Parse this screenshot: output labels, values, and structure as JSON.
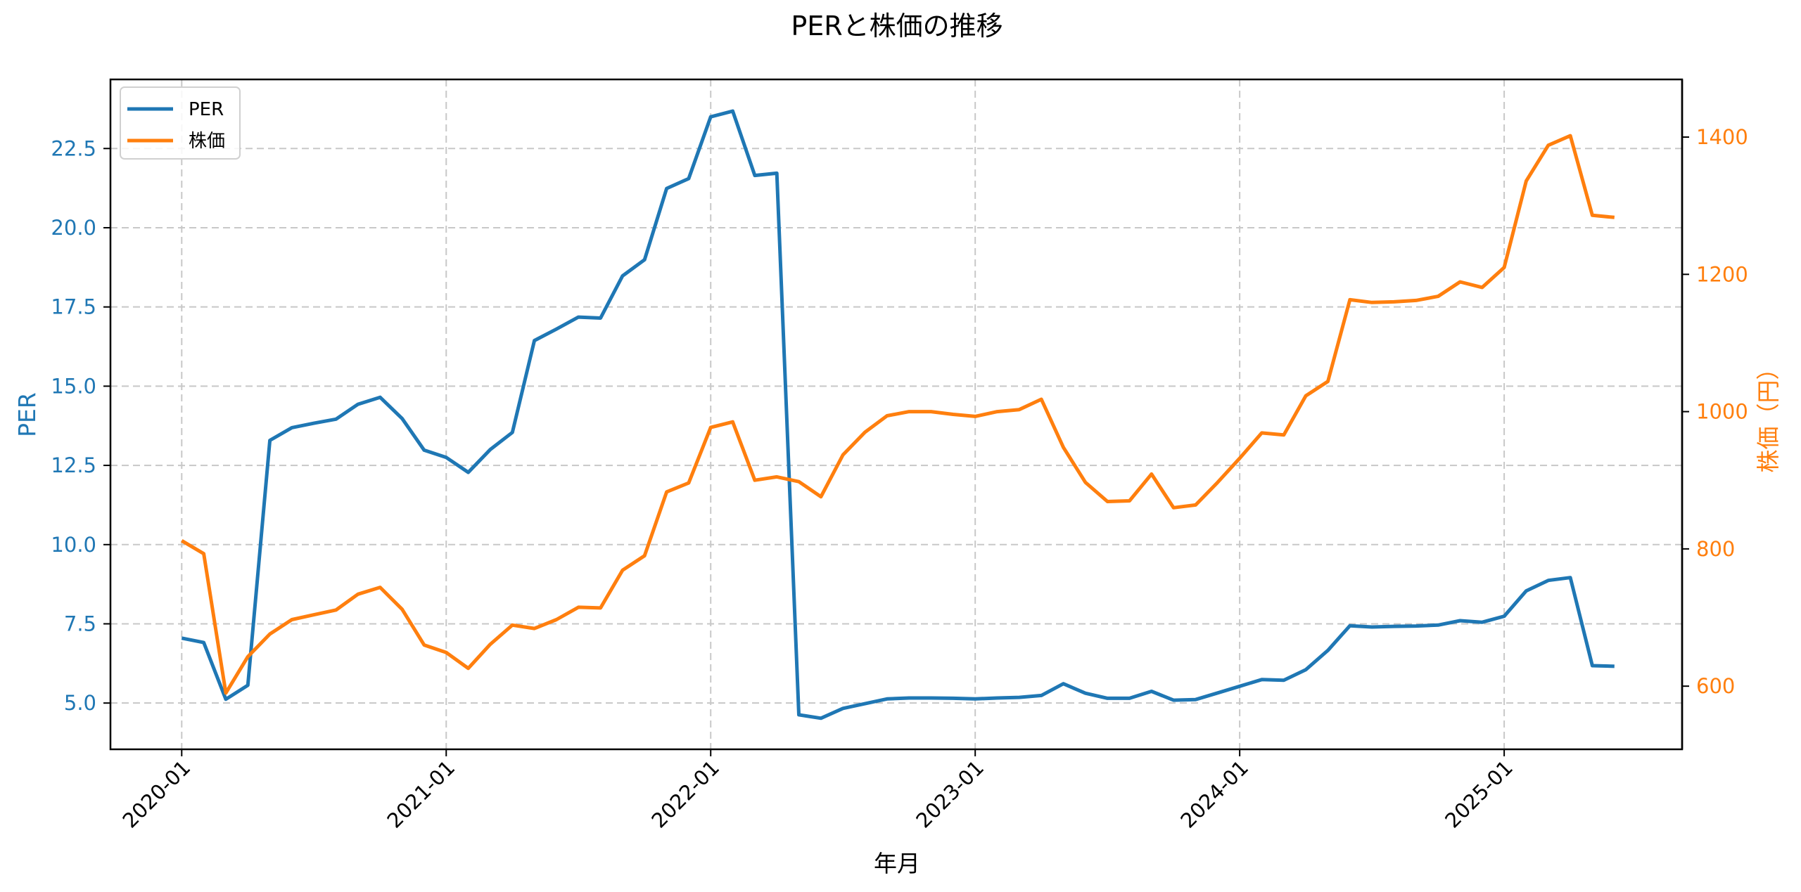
{
  "chart_data": {
    "type": "line",
    "title": "PERと株価の推移",
    "xlabel": "年月",
    "ylabel": "PER",
    "ylabel_right": "株価（円）",
    "grid": true,
    "legend_position": "upper left",
    "x_tick_labels": [
      "2020-01",
      "2021-01",
      "2022-01",
      "2023-01",
      "2024-01",
      "2025-01"
    ],
    "y_ticks_left": [
      "5.0",
      "7.5",
      "10.0",
      "12.5",
      "15.0",
      "17.5",
      "20.0",
      "22.5"
    ],
    "y_ticks_right": [
      "600",
      "800",
      "1000",
      "1200",
      "1400"
    ],
    "ylim": [
      3.54,
      24.68
    ],
    "ylim_right": [
      508,
      1484
    ],
    "x": [
      "2020-01",
      "2020-02",
      "2020-03",
      "2020-04",
      "2020-05",
      "2020-06",
      "2020-07",
      "2020-08",
      "2020-09",
      "2020-10",
      "2020-11",
      "2020-12",
      "2021-01",
      "2021-02",
      "2021-03",
      "2021-04",
      "2021-05",
      "2021-06",
      "2021-07",
      "2021-08",
      "2021-09",
      "2021-10",
      "2021-11",
      "2021-12",
      "2022-01",
      "2022-02",
      "2022-03",
      "2022-04",
      "2022-05",
      "2022-06",
      "2022-07",
      "2022-08",
      "2022-09",
      "2022-10",
      "2022-11",
      "2022-12",
      "2023-01",
      "2023-02",
      "2023-03",
      "2023-04",
      "2023-05",
      "2023-06",
      "2023-07",
      "2023-08",
      "2023-09",
      "2023-10",
      "2023-11",
      "2023-12",
      "2024-01",
      "2024-02",
      "2024-03",
      "2024-04",
      "2024-05",
      "2024-06",
      "2024-07",
      "2024-08",
      "2024-09",
      "2024-10",
      "2024-11",
      "2024-12",
      "2025-01",
      "2025-02",
      "2025-03",
      "2025-04",
      "2025-05",
      "2025-06"
    ],
    "series": [
      {
        "name": "PER",
        "axis": "left",
        "color": "#1f77b4",
        "values": [
          7.05,
          6.91,
          5.12,
          5.56,
          13.29,
          13.69,
          13.83,
          13.96,
          14.43,
          14.65,
          13.98,
          12.98,
          12.75,
          12.28,
          13.0,
          13.54,
          16.44,
          16.8,
          17.18,
          17.15,
          18.48,
          18.99,
          21.24,
          21.55,
          23.5,
          23.68,
          21.65,
          21.72,
          4.63,
          4.52,
          4.83,
          4.98,
          5.13,
          5.16,
          5.16,
          5.15,
          5.13,
          5.16,
          5.18,
          5.24,
          5.61,
          5.31,
          5.15,
          5.15,
          5.37,
          5.09,
          5.11,
          5.32,
          5.53,
          5.74,
          5.72,
          6.05,
          6.66,
          7.44,
          7.4,
          7.42,
          7.43,
          7.46,
          7.6,
          7.55,
          7.74,
          8.54,
          8.87,
          8.96,
          6.18,
          6.16
        ]
      },
      {
        "name": "株価",
        "axis": "right",
        "color": "#ff7f0e",
        "values": [
          812,
          793,
          590,
          643,
          676,
          697,
          704,
          711,
          734,
          744,
          712,
          660,
          649,
          626,
          661,
          689,
          684,
          697,
          715,
          714,
          769,
          790,
          883,
          896,
          977,
          985,
          900,
          905,
          898,
          876,
          937,
          970,
          994,
          1000,
          1000,
          996,
          993,
          1000,
          1003,
          1018,
          948,
          897,
          869,
          870,
          909,
          860,
          864,
          897,
          932,
          969,
          966,
          1023,
          1044,
          1163,
          1159,
          1160,
          1162,
          1168,
          1189,
          1181,
          1210,
          1336,
          1388,
          1402,
          1286,
          1283
        ]
      }
    ]
  },
  "legend": {
    "items": [
      {
        "label": "PER",
        "color": "#1f77b4"
      },
      {
        "label": "株価",
        "color": "#ff7f0e"
      }
    ]
  },
  "colors": {
    "per": "#1f77b4",
    "price": "#ff7f0e",
    "grid": "#c8c8c8",
    "axis": "#000000"
  }
}
